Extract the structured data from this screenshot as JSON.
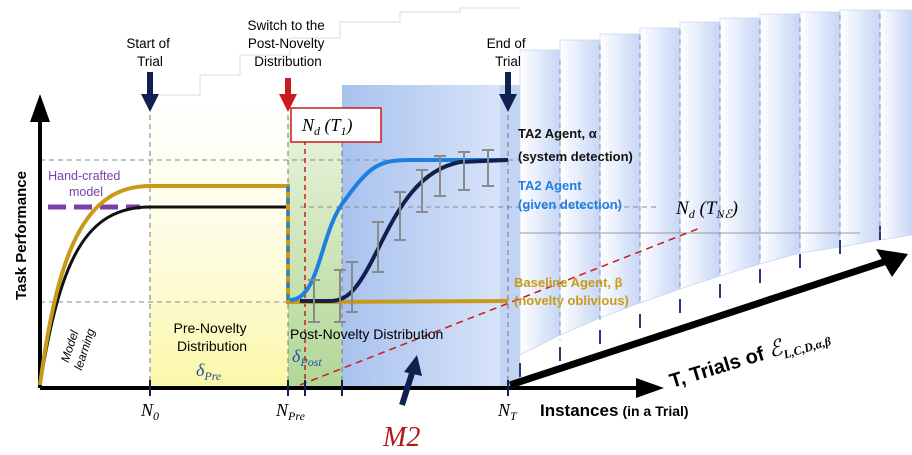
{
  "axes": {
    "y_label": "Task Performance",
    "x_label_main": "Instances",
    "x_label_sub": "(in a Trial)",
    "depth_label_prefix": "T, Trials of ",
    "depth_label_symbol": "ℰ",
    "depth_label_subscript": "L,C,D,α,β"
  },
  "x_ticks": {
    "n0": {
      "main": "N",
      "sub": "0"
    },
    "npre": {
      "main": "N",
      "sub": "Pre"
    },
    "nt": {
      "main": "N",
      "sub": "T"
    }
  },
  "markers": {
    "start": {
      "line1": "Start of",
      "line2": "Trial"
    },
    "switch": {
      "line1": "Switch to the",
      "line2": "Post-Novelty",
      "line3": "Distribution"
    },
    "end": {
      "line1": "End of",
      "line2": "Trial"
    }
  },
  "labels": {
    "handcrafted_1": "Hand-crafted",
    "handcrafted_2": "model",
    "model_learning_1": "Model",
    "model_learning_2": "learning",
    "pre_novelty_1": "Pre-Novelty",
    "pre_novelty_2": "Distribution",
    "delta_pre_main": "δ",
    "delta_pre_sub": "Pre",
    "post_novelty": "Post-Novelty Distribution",
    "delta_post_main": "δ",
    "delta_post_sub": "Post",
    "m2": "M2",
    "nd_t1_main": "N",
    "nd_t1_sub": "d",
    "nd_t1_arg": " (T",
    "nd_t1_arg_sub": "1",
    "nd_t1_close": ")",
    "nd_tne_main": "N",
    "nd_tne_sub": "d",
    "nd_tne_arg": " (T",
    "nd_tne_arg_sub": "Nℰ",
    "nd_tne_close": ")"
  },
  "agents": {
    "ta2_system": {
      "line1": "TA2 Agent, α",
      "line2": "(system detection)",
      "color": "#111111"
    },
    "ta2_given": {
      "line1": "TA2 Agent",
      "line2": "(given detection)",
      "color": "#1f7fe0"
    },
    "baseline": {
      "line1": "Baseline Agent, β",
      "line2": "(novelty oblivious)",
      "color": "#c79a18"
    }
  },
  "colors": {
    "navy": "#10214f",
    "red": "#cc1a1a",
    "purple": "#7b3fa8",
    "gold": "#c79a18",
    "blue": "#1f7fe0",
    "dark_red": "#b01818"
  }
}
